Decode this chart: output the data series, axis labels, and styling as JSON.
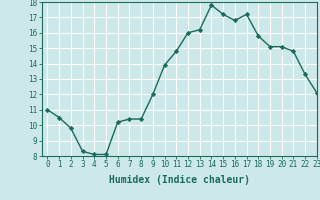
{
  "x": [
    0,
    1,
    2,
    3,
    4,
    5,
    6,
    7,
    8,
    9,
    10,
    11,
    12,
    13,
    14,
    15,
    16,
    17,
    18,
    19,
    20,
    21,
    22,
    23
  ],
  "y": [
    11.0,
    10.5,
    9.8,
    8.3,
    8.1,
    8.1,
    10.2,
    10.4,
    10.4,
    12.0,
    13.9,
    14.8,
    16.0,
    16.2,
    17.8,
    17.2,
    16.8,
    17.2,
    15.8,
    15.1,
    15.1,
    14.8,
    13.3,
    12.1
  ],
  "line_color": "#1a6b5a",
  "marker": "D",
  "marker_size": 2.2,
  "bg_color": "#cce8e8",
  "grid_color": "#ffffff",
  "xlabel": "Humidex (Indice chaleur)",
  "ylim": [
    8,
    18
  ],
  "xlim": [
    -0.5,
    23
  ],
  "yticks": [
    8,
    9,
    10,
    11,
    12,
    13,
    14,
    15,
    16,
    17,
    18
  ],
  "xticks": [
    0,
    1,
    2,
    3,
    4,
    5,
    6,
    7,
    8,
    9,
    10,
    11,
    12,
    13,
    14,
    15,
    16,
    17,
    18,
    19,
    20,
    21,
    22,
    23
  ],
  "tick_fontsize": 5.5,
  "xlabel_fontsize": 7.0,
  "line_width": 1.0
}
